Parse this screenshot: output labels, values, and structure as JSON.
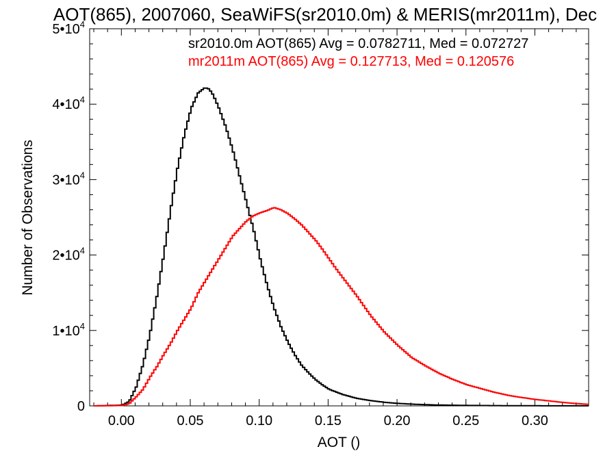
{
  "chart_data": {
    "type": "line",
    "title": "AOT(865), 2007060, SeaWiFS(sr2010.0m) & MERIS(mr2011m), Dec",
    "xlabel": "AOT ()",
    "ylabel": "Number of Observations",
    "xlim": [
      -0.023,
      0.339
    ],
    "ylim": [
      0,
      50000
    ],
    "x_ticks": [
      0.0,
      0.05,
      0.1,
      0.15,
      0.2,
      0.25,
      0.3
    ],
    "x_tick_labels": [
      "0.00",
      "0.05",
      "0.10",
      "0.15",
      "0.20",
      "0.25",
      "0.30"
    ],
    "y_ticks": [
      0,
      10000,
      20000,
      30000,
      40000,
      50000
    ],
    "y_tick_labels": [
      {
        "base": "0",
        "exp": ""
      },
      {
        "base": "1•10",
        "exp": "4"
      },
      {
        "base": "2•10",
        "exp": "4"
      },
      {
        "base": "3•10",
        "exp": "4"
      },
      {
        "base": "4•10",
        "exp": "4"
      },
      {
        "base": "5•10",
        "exp": "4"
      }
    ],
    "grid": false,
    "legend_position": "top-right",
    "series": [
      {
        "legend": "sr2010.0m AOT(865) Avg = 0.0782711, Med = 0.072727",
        "color": "#000000",
        "x": [
          -0.02,
          0.0,
          0.005,
          0.01,
          0.015,
          0.02,
          0.025,
          0.03,
          0.035,
          0.04,
          0.045,
          0.05,
          0.055,
          0.06,
          0.063,
          0.066,
          0.07,
          0.075,
          0.08,
          0.085,
          0.09,
          0.095,
          0.1,
          0.105,
          0.11,
          0.115,
          0.12,
          0.125,
          0.13,
          0.135,
          0.14,
          0.145,
          0.15,
          0.16,
          0.17,
          0.18,
          0.19,
          0.2,
          0.21,
          0.22,
          0.23,
          0.25,
          0.28,
          0.31,
          0.339
        ],
        "y": [
          0,
          100,
          600,
          2500,
          5500,
          9500,
          14500,
          20000,
          26000,
          31500,
          36000,
          39500,
          41500,
          42200,
          42000,
          41200,
          39500,
          37000,
          34000,
          30500,
          27000,
          23500,
          19500,
          16000,
          13000,
          10500,
          8500,
          6800,
          5400,
          4400,
          3500,
          2800,
          2200,
          1500,
          1000,
          700,
          480,
          330,
          230,
          160,
          110,
          60,
          25,
          10,
          5
        ]
      },
      {
        "legend": "mr2011m AOT(865) Avg = 0.127713, Med = 0.120576",
        "color": "#ff0000",
        "x": [
          -0.02,
          0.0,
          0.005,
          0.01,
          0.015,
          0.02,
          0.025,
          0.03,
          0.035,
          0.04,
          0.045,
          0.05,
          0.055,
          0.06,
          0.065,
          0.07,
          0.075,
          0.08,
          0.085,
          0.09,
          0.095,
          0.1,
          0.105,
          0.11,
          0.115,
          0.12,
          0.125,
          0.13,
          0.135,
          0.14,
          0.145,
          0.15,
          0.155,
          0.16,
          0.165,
          0.17,
          0.175,
          0.18,
          0.19,
          0.2,
          0.21,
          0.22,
          0.23,
          0.24,
          0.25,
          0.26,
          0.27,
          0.28,
          0.29,
          0.3,
          0.31,
          0.32,
          0.33,
          0.339
        ],
        "y": [
          0,
          50,
          300,
          1200,
          2200,
          3800,
          5200,
          6800,
          8300,
          10000,
          11500,
          13000,
          15000,
          16500,
          18000,
          19500,
          21000,
          22500,
          23500,
          24500,
          25200,
          25600,
          25900,
          26300,
          26000,
          25500,
          24800,
          24000,
          23000,
          22000,
          20800,
          19500,
          18200,
          17000,
          15800,
          14600,
          13300,
          12000,
          9800,
          8000,
          6400,
          5300,
          4300,
          3500,
          2800,
          2300,
          1800,
          1400,
          1100,
          850,
          650,
          450,
          300,
          200
        ]
      }
    ]
  }
}
